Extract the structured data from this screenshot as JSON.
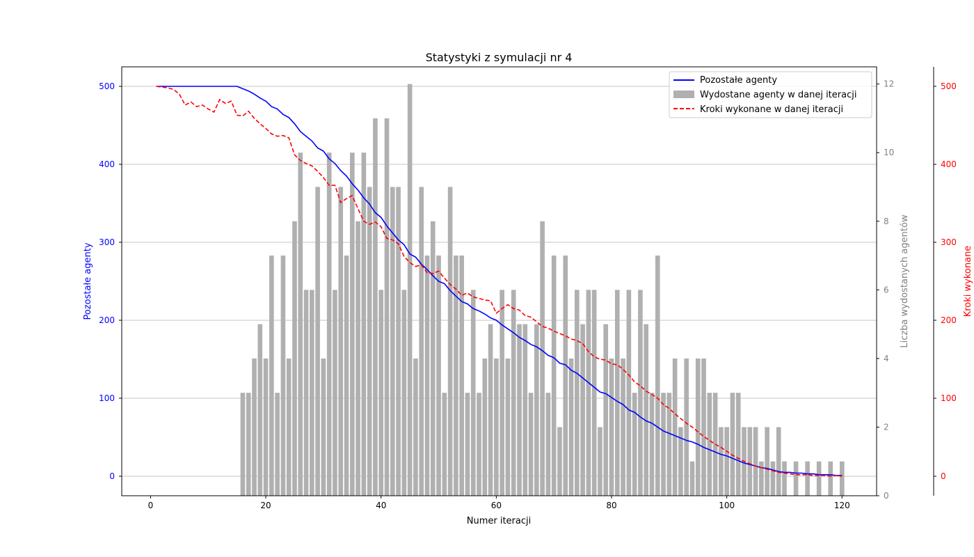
{
  "chart_data": {
    "type": "bar+line",
    "title": "Statystyki z symulacji nr 4",
    "xlabel": "Numer iteracji",
    "ylabel_left": "Pozostałe agenty",
    "ylabel_right1": "Liczba wydostanych agentów",
    "ylabel_right2": "Kroki wykonane",
    "xlim": [
      -5,
      126
    ],
    "ylim_left": [
      -25,
      525
    ],
    "ylim_right1": [
      0,
      12.5
    ],
    "ylim_right2": [
      -25,
      525
    ],
    "x_ticks": [
      0,
      20,
      40,
      60,
      80,
      100,
      120
    ],
    "y_ticks_left": [
      0,
      100,
      200,
      300,
      400,
      500
    ],
    "y_ticks_right1": [
      0,
      2,
      4,
      6,
      8,
      10,
      12
    ],
    "y_ticks_right2": [
      0,
      100,
      200,
      300,
      400,
      500
    ],
    "grid": "horizontal",
    "legend_position": "top-right",
    "colors": {
      "remaining": "#0000ff",
      "escaped": "#b0b0b0",
      "steps": "#ff0000",
      "axis_right1": "#808080"
    },
    "series": [
      {
        "name": "Pozostałe agenty",
        "kind": "line",
        "axis": "left",
        "x": [
          1,
          2,
          3,
          4,
          5,
          6,
          7,
          8,
          9,
          10,
          11,
          12,
          13,
          14,
          15,
          16,
          17,
          18,
          19,
          20,
          21,
          22,
          23,
          24,
          25,
          26,
          27,
          28,
          29,
          30,
          31,
          32,
          33,
          34,
          35,
          36,
          37,
          38,
          39,
          40,
          41,
          42,
          43,
          44,
          45,
          46,
          47,
          48,
          49,
          50,
          51,
          52,
          53,
          54,
          55,
          56,
          57,
          58,
          59,
          60,
          61,
          62,
          63,
          64,
          65,
          66,
          67,
          68,
          69,
          70,
          71,
          72,
          73,
          74,
          75,
          76,
          77,
          78,
          79,
          80,
          81,
          82,
          83,
          84,
          85,
          86,
          87,
          88,
          89,
          90,
          91,
          92,
          93,
          94,
          95,
          96,
          97,
          98,
          99,
          100,
          101,
          102,
          103,
          104,
          105,
          106,
          107,
          108,
          109,
          110,
          111,
          112,
          113,
          114,
          115,
          116,
          117,
          118,
          119,
          120
        ],
        "values": [
          500,
          500,
          500,
          500,
          500,
          500,
          500,
          500,
          500,
          500,
          500,
          500,
          500,
          500,
          500,
          497,
          494,
          490,
          485,
          481,
          474,
          471,
          464,
          460,
          452,
          442,
          436,
          430,
          421,
          417,
          407,
          401,
          392,
          385,
          375,
          367,
          357,
          349,
          338,
          332,
          321,
          312,
          303,
          297,
          285,
          281,
          272,
          265,
          257,
          250,
          247,
          238,
          231,
          224,
          221,
          215,
          212,
          208,
          203,
          200,
          194,
          189,
          184,
          178,
          174,
          169,
          166,
          161,
          155,
          152,
          145,
          143,
          136,
          132,
          126,
          120,
          114,
          108,
          106,
          101,
          96,
          92,
          85,
          82,
          76,
          71,
          68,
          63,
          58,
          55,
          52,
          49,
          46,
          44,
          41,
          37,
          34,
          31,
          28,
          26,
          23,
          20,
          17,
          15,
          13,
          11,
          10,
          8,
          6,
          5,
          5,
          4,
          4,
          3,
          3,
          2,
          2,
          2,
          1,
          1
        ]
      },
      {
        "name": "Wydostane agenty w danej iteracji",
        "kind": "bar",
        "axis": "right1",
        "x": [
          16,
          17,
          18,
          19,
          20,
          21,
          22,
          23,
          24,
          25,
          26,
          27,
          28,
          29,
          30,
          31,
          32,
          33,
          34,
          35,
          36,
          37,
          38,
          39,
          40,
          41,
          42,
          43,
          44,
          45,
          46,
          47,
          48,
          49,
          50,
          51,
          52,
          53,
          54,
          55,
          56,
          57,
          58,
          59,
          60,
          61,
          62,
          63,
          64,
          65,
          66,
          67,
          68,
          69,
          70,
          71,
          72,
          73,
          74,
          75,
          76,
          77,
          78,
          79,
          80,
          81,
          82,
          83,
          84,
          85,
          86,
          87,
          88,
          89,
          90,
          91,
          92,
          93,
          94,
          95,
          96,
          97,
          98,
          99,
          100,
          101,
          102,
          103,
          104,
          105,
          106,
          107,
          108,
          109,
          110,
          111,
          112,
          113,
          114,
          115,
          116,
          117,
          118,
          119,
          120
        ],
        "values": [
          3,
          3,
          4,
          5,
          4,
          7,
          3,
          7,
          4,
          8,
          10,
          6,
          6,
          9,
          4,
          10,
          6,
          9,
          7,
          10,
          8,
          10,
          9,
          11,
          6,
          11,
          9,
          9,
          6,
          12,
          4,
          9,
          7,
          8,
          7,
          3,
          9,
          7,
          7,
          3,
          6,
          3,
          4,
          5,
          4,
          6,
          4,
          6,
          5,
          5,
          3,
          5,
          8,
          3,
          7,
          2,
          7,
          4,
          6,
          5,
          6,
          6,
          2,
          5,
          4,
          6,
          4,
          6,
          3,
          6,
          5,
          3,
          7,
          3,
          3,
          4,
          2,
          4,
          1,
          4,
          4,
          3,
          3,
          2,
          2,
          3,
          3,
          2,
          2,
          2,
          1,
          2,
          1,
          2,
          1,
          0,
          1,
          0,
          1,
          0,
          1,
          0,
          1,
          0,
          1
        ]
      },
      {
        "name": "Kroki wykonane w danej iteracji",
        "kind": "line",
        "style": "dashed",
        "axis": "right2",
        "x": [
          1,
          2,
          3,
          4,
          5,
          6,
          7,
          8,
          9,
          10,
          11,
          12,
          13,
          14,
          15,
          16,
          17,
          18,
          19,
          20,
          21,
          22,
          23,
          24,
          25,
          26,
          27,
          28,
          29,
          30,
          31,
          32,
          33,
          34,
          35,
          36,
          37,
          38,
          39,
          40,
          41,
          42,
          43,
          44,
          45,
          46,
          47,
          48,
          49,
          50,
          51,
          52,
          53,
          54,
          55,
          56,
          57,
          58,
          59,
          60,
          61,
          62,
          63,
          64,
          65,
          66,
          67,
          68,
          69,
          70,
          71,
          72,
          73,
          74,
          75,
          76,
          77,
          78,
          79,
          80,
          81,
          82,
          83,
          84,
          85,
          86,
          87,
          88,
          89,
          90,
          91,
          92,
          93,
          94,
          95,
          96,
          97,
          98,
          99,
          100,
          101,
          102,
          103,
          104,
          105,
          106,
          107,
          108,
          109,
          110,
          111,
          112,
          113,
          114,
          115,
          116,
          117,
          118,
          119,
          120
        ],
        "values": [
          500,
          499,
          498,
          496,
          490,
          476,
          480,
          474,
          476,
          471,
          467,
          483,
          478,
          481,
          463,
          462,
          468,
          459,
          452,
          446,
          439,
          436,
          437,
          434,
          412,
          405,
          401,
          398,
          391,
          383,
          373,
          373,
          351,
          356,
          360,
          343,
          327,
          323,
          326,
          320,
          305,
          303,
          298,
          282,
          274,
          269,
          271,
          261,
          260,
          263,
          254,
          246,
          240,
          232,
          235,
          230,
          228,
          226,
          225,
          209,
          215,
          220,
          215,
          213,
          206,
          204,
          198,
          192,
          190,
          186,
          183,
          180,
          176,
          174,
          170,
          160,
          153,
          150,
          149,
          144,
          143,
          137,
          130,
          121,
          116,
          109,
          105,
          100,
          92,
          87,
          80,
          74,
          68,
          63,
          57,
          51,
          46,
          41,
          37,
          32,
          27,
          23,
          19,
          16,
          13,
          11,
          9,
          7,
          5,
          4,
          3,
          2,
          2,
          2,
          1,
          1,
          1,
          0,
          1,
          0
        ]
      }
    ]
  }
}
